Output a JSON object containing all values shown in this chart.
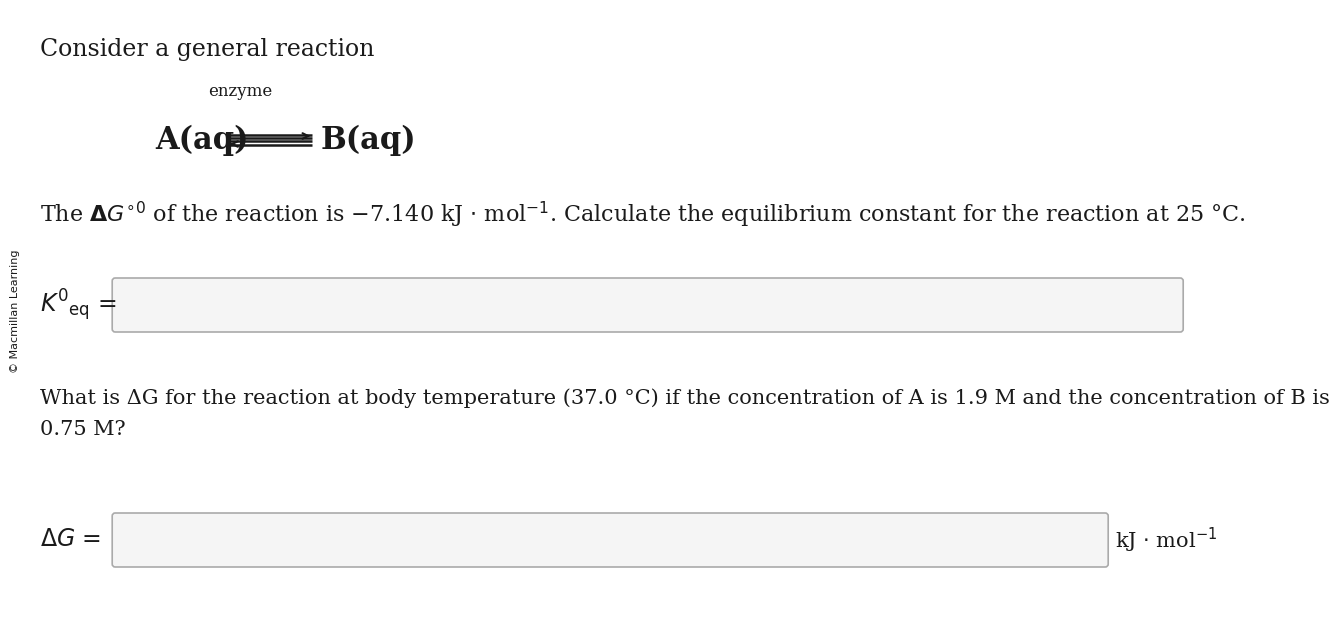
{
  "background_color": "#ffffff",
  "sidebar_text": "© Macmillan Learning",
  "title_text": "Consider a general reaction",
  "enzyme_label": "enzyme",
  "reaction_left": "A(aq)",
  "reaction_right": "B(aq)",
  "problem_text_1": "The ",
  "problem_text_2": " of the reaction is –7.140 kJ · mol⁻¹. Calculate the equilibrium constant for the reaction at 25 °C.",
  "keq_label_main": "K",
  "keq_label_sub": "eq",
  "keq_label_prime": "′",
  "question2_line1": "What is ΔG for the reaction at body temperature (37.0 °C) if the concentration of A is 1.9 M and the concentration of B is",
  "question2_line2": "0.75 M?",
  "ag_label": "ΔG =",
  "unit_label": "kJ · mol⁻¹",
  "box_edge_color": "#aaaaaa",
  "box_face_color": "#f5f5f5",
  "text_color": "#1a1a1a",
  "sidebar_color": "#1a1a1a",
  "font_size_title": 17,
  "font_size_body": 16,
  "font_size_reaction": 22,
  "font_size_enzyme": 12,
  "font_size_sidebar": 8,
  "font_size_keq": 17,
  "font_size_unit": 15
}
